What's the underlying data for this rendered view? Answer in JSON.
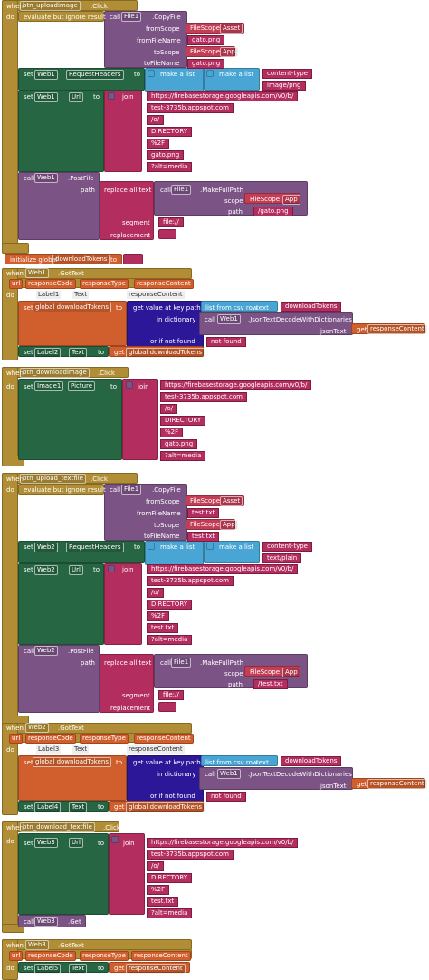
{
  "blocks": [
    {
      "labels": [
        "when",
        "btn_uploadimage",
        ".Click",
        "do",
        "evaluate but ignore result",
        "call",
        "File1",
        ".CopyFile",
        "fromScope",
        "FileScope",
        "Asset",
        "fromFileName",
        "gato.png",
        "toScope",
        "FileScope",
        "App",
        "toFileName",
        "gato.png",
        "set",
        "Web1",
        "RequestHeaders",
        "to",
        "make a list",
        "make a list",
        "content-type",
        "image/png",
        "set",
        "Web1",
        "Url",
        "to",
        "join",
        "https://firebasestorage.googleapis.com/v0/b/",
        "test-3735b.appspot.com",
        "/o/",
        "DIRECTORY",
        "%2F",
        "gato.png",
        "?alt=media",
        "call",
        "Web1",
        ".PostFile",
        "path",
        "replace all text",
        "call",
        "File1",
        ".MakeFullPath",
        "scope",
        "FileScope",
        "App",
        "path",
        "/gato.png",
        "segment",
        "file://",
        "replacement"
      ]
    },
    {
      "labels": [
        "initialize global",
        "downloadTokens",
        "to"
      ]
    },
    {
      "labels": [
        "when",
        "Web1",
        ".GotText",
        "url",
        "responseCode",
        "responseType",
        "responseContent",
        "do",
        "Label1",
        "Text",
        "responseContent",
        "set",
        "global downloadTokens",
        "to",
        "get value at key path",
        "list from csv row",
        "text",
        "downloadTokens",
        "in dictionary",
        "call",
        "Web1",
        ".JsonTextDecodeWithDictionaries",
        "jsonText",
        "get",
        "responseContent",
        "or if not found",
        "not found",
        "set",
        "Label2",
        "Text",
        "to",
        "get",
        "global downloadTokens"
      ]
    },
    {
      "labels": [
        "when",
        "btn_downloadimage",
        ".Click",
        "do",
        "set",
        "Image1",
        "Picture",
        "to",
        "join",
        "https://firebasestorage.googleapis.com/v0/b/",
        "test-3735b.appspot.com",
        "/o/",
        "DIRECTORY",
        "%2F",
        "gato.png",
        "?alt=media"
      ]
    },
    {
      "labels": [
        "when",
        "btn_upload_textfile",
        ".Click",
        "do",
        "evaluate but ignore result",
        "call",
        "File1",
        ".CopyFile",
        "fromScope",
        "FileScope",
        "Asset",
        "fromFileName",
        "test.txt",
        "toScope",
        "FileScope",
        "App",
        "toFileName",
        "test.txt",
        "set",
        "Web2",
        "RequestHeaders",
        "to",
        "make a list",
        "make a list",
        "content-type",
        "text/plain",
        "set",
        "Web2",
        "Url",
        "to",
        "join",
        "https://firebasestorage.googleapis.com/v0/b/",
        "test-3735b.appspot.com",
        "/o/",
        "DIRECTORY",
        "%2F",
        "test.txt",
        "?alt=media",
        "call",
        "Web2",
        ".PostFile",
        "path",
        "replace all text",
        "call",
        "File1",
        ".MakeFullPath",
        "scope",
        "FileScope",
        "App",
        "path",
        "/test.txt",
        "segment",
        "file://",
        "replacement"
      ]
    },
    {
      "labels": [
        "when",
        "Web2",
        ".GotText",
        "url",
        "responseCode",
        "responseType",
        "responseContent",
        "do",
        "Label3",
        "Text",
        "responseContent",
        "set",
        "global downloadTokens",
        "to",
        "get value at key path",
        "list from csv row",
        "text",
        "downloadTokens",
        "in dictionary",
        "call",
        "Web1",
        ".JsonTextDecodeWithDictionaries",
        "jsonText",
        "get",
        "responseContent",
        "or if not found",
        "not found",
        "set",
        "Label4",
        "Text",
        "to",
        "get",
        "global downloadTokens"
      ]
    },
    {
      "labels": [
        "when",
        "btn_download_textfile",
        ".Click",
        "do",
        "set",
        "Web3",
        "Url",
        "to",
        "join",
        "https://firebasestorage.googleapis.com/v0/b/",
        "test-3735b.appspot.com",
        "/o/",
        "DIRECTORY",
        "%2F",
        "test.txt",
        "?alt=media",
        "call",
        "Web3",
        ".Get"
      ]
    },
    {
      "labels": [
        "when",
        "Web3",
        ".GotText",
        "url",
        "responseCode",
        "responseType",
        "responseContent",
        "do",
        "set",
        "Label5",
        "Text",
        "to",
        "get",
        "responseContent"
      ]
    }
  ]
}
